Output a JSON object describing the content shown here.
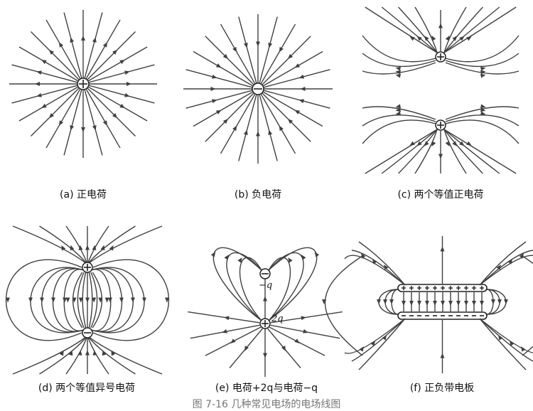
{
  "panels": [
    {
      "id": "a",
      "caption": "(a) 正电荷"
    },
    {
      "id": "b",
      "caption": "(b) 负电荷"
    },
    {
      "id": "c",
      "caption": "(c) 两个等值正电荷"
    },
    {
      "id": "d",
      "caption": "(d) 两个等值异号电荷"
    },
    {
      "id": "e",
      "caption": "(e) 电荷+2q与电荷−q",
      "labels": {
        "minus_q": "−q",
        "two_q": "2q"
      }
    },
    {
      "id": "f",
      "caption": "(f) 正负带电板"
    }
  ],
  "figure_caption": "图 7-16  几种常见电场的电场线图",
  "colors": {
    "line": "#404040",
    "charge_fill": "#ffffff",
    "charge_stroke": "#222222"
  }
}
